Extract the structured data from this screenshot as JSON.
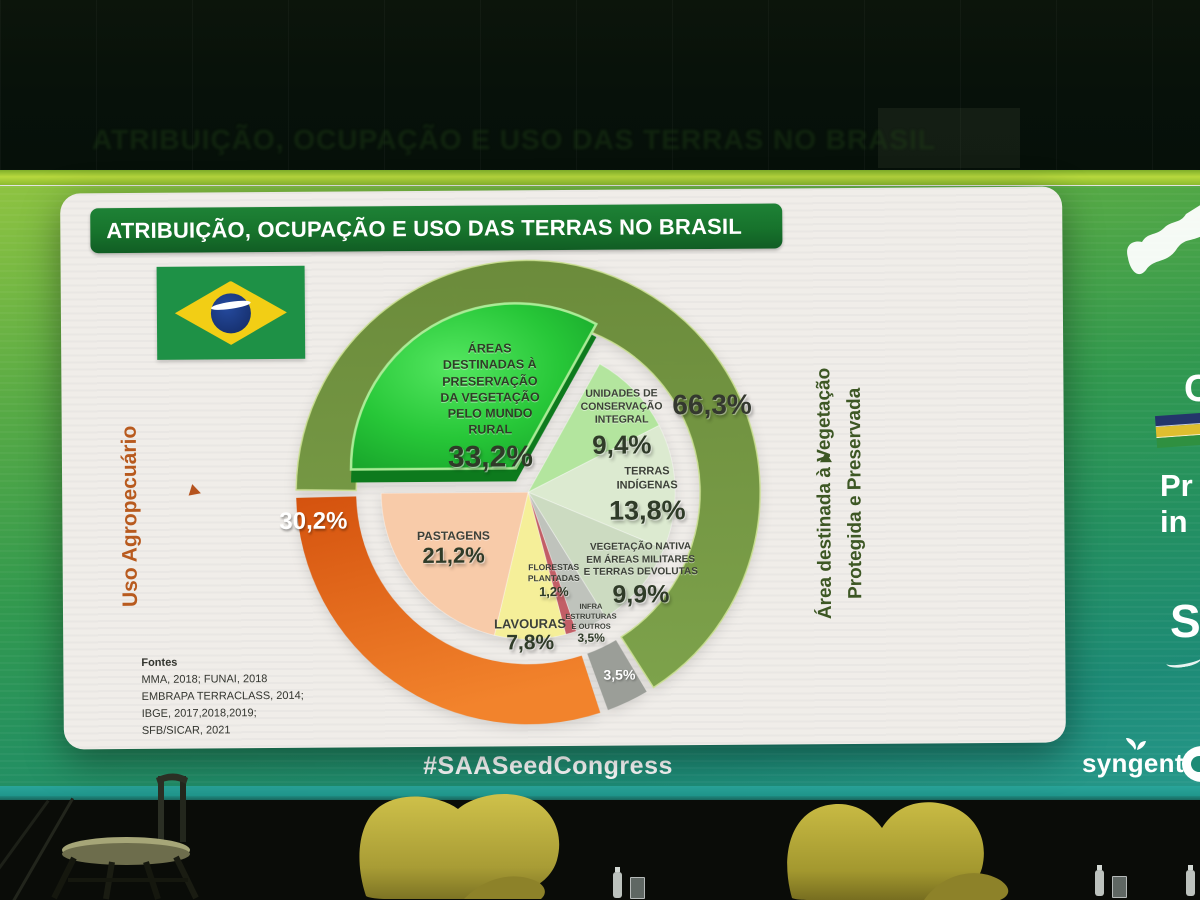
{
  "slide": {
    "title": "ATRIBUIÇÃO, OCUPAÇÃO E USO DAS TERRAS NO BRASIL",
    "left_axis_label": "Uso Agropecuário",
    "right_axis_label": "Área destinada à Vegetação\nProtegida e Preservada",
    "sources": {
      "heading": "Fontes",
      "lines": [
        "MMA, 2018; FUNAI, 2018",
        "EMBRAPA TERRACLASS, 2014;",
        "IBGE, 2017,2018,2019;",
        "SFB/SICAR, 2021"
      ]
    }
  },
  "chart_data": {
    "type": "pie",
    "title": "ATRIBUIÇÃO, OCUPAÇÃO E USO DAS TERRAS NO BRASIL",
    "unit": "% of Brazil land area",
    "start_angle_deg": 270,
    "clockwise": true,
    "slices": [
      {
        "label": "ÁREAS\nDESTINADAS À\nPRESERVAÇÃO\nDA VEGETAÇÃO\nPELO MUNDO\nRURAL",
        "value": 33.2,
        "display": "33,2%",
        "color": "#22bd35",
        "exploded": true
      },
      {
        "label": "UNIDADES DE\nCONSERVAÇÃO\nINTEGRAL",
        "value": 9.4,
        "display": "9,4%",
        "color": "#b3e59e",
        "exploded": false
      },
      {
        "label": "TERRAS\nINDÍGENAS",
        "value": 13.8,
        "display": "13,8%",
        "color": "#dcead0",
        "exploded": false
      },
      {
        "label": "VEGETAÇÃO NATIVA\nEM ÁREAS MILITARES\nE TERRAS DEVOLUTAS",
        "value": 9.9,
        "display": "9,9%",
        "color": "#ccdbc1",
        "exploded": false
      },
      {
        "label": "INFRA\nESTRUTURAS\nE OUTROS",
        "value": 3.5,
        "display": "3,5%",
        "color": "#bfc3bc",
        "exploded": false
      },
      {
        "label": "FLORESTAS\nPLANTADAS",
        "value": 1.2,
        "display": "1,2%",
        "color": "#c25e66",
        "exploded": false
      },
      {
        "label": "LAVOURAS",
        "value": 7.8,
        "display": "7,8%",
        "color": "#f5ef99",
        "exploded": false
      },
      {
        "label": "PASTAGENS",
        "value": 21.2,
        "display": "21,2%",
        "color": "#f8cba9",
        "exploded": false
      }
    ],
    "rings": [
      {
        "name": "Área destinada à Vegetação Protegida e Preservada",
        "value": 66.3,
        "display": "66,3%",
        "color": "#6f9140"
      },
      {
        "name": "Infraestruturas e outros",
        "value": 3.5,
        "display": "3,5%",
        "color": "#9b9e98"
      },
      {
        "name": "Uso Agropecuário",
        "value": 30.2,
        "display": "30,2%",
        "color": "#e8641c"
      }
    ],
    "legend_position": "none",
    "grid": false
  },
  "backdrop": {
    "hashtag": "#SAASeedCongress",
    "brand": "syngenta",
    "partial": {
      "letter_c": "C",
      "lines": "Pr\nin",
      "letter_s": "S"
    }
  }
}
